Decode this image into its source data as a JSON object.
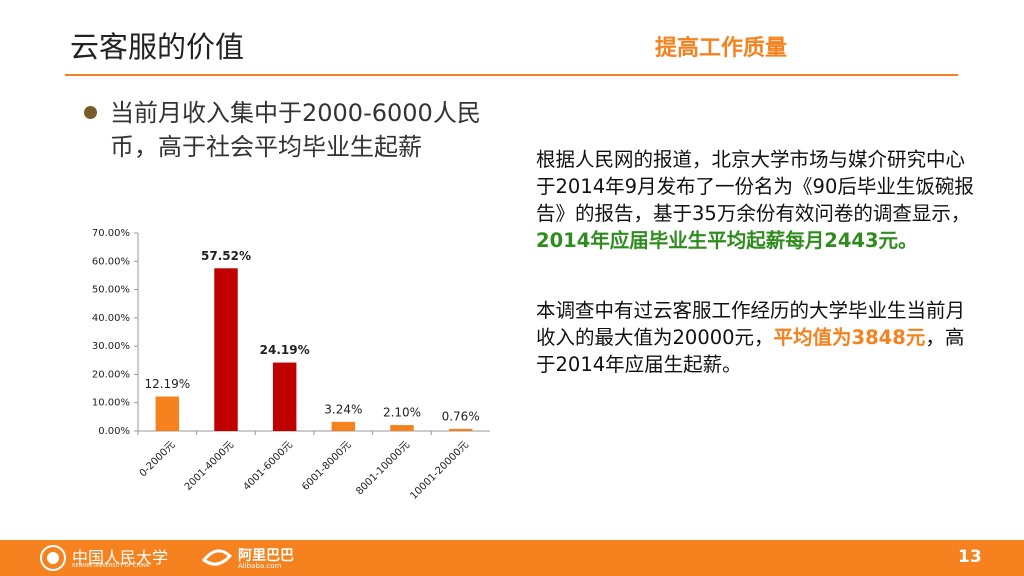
{
  "header": {
    "title": "云客服的价值",
    "subtitle": "提高工作质量"
  },
  "bullet": "当前月收入集中于2000-6000人民币，高于社会平均毕业生起薪",
  "chart_data": {
    "type": "bar",
    "categories": [
      "0-2000元",
      "2001-4000元",
      "4001-6000元",
      "6001-8000元",
      "8001-10000元",
      "10001-20000元"
    ],
    "values": [
      12.19,
      57.52,
      24.19,
      3.24,
      2.1,
      0.76
    ],
    "value_labels": [
      "12.19%",
      "57.52%",
      "24.19%",
      "3.24%",
      "2.10%",
      "0.76%"
    ],
    "colors": [
      "#f5821f",
      "#c00000",
      "#c00000",
      "#f5821f",
      "#f5821f",
      "#f5821f"
    ],
    "ylim": [
      0,
      70
    ],
    "yticks": [
      {
        "value": 0,
        "label": "0.00%"
      },
      {
        "value": 10,
        "label": "10.00%"
      },
      {
        "value": 20,
        "label": "20.00%"
      },
      {
        "value": 30,
        "label": "30.00%"
      },
      {
        "value": 40,
        "label": "40.00%"
      },
      {
        "value": 50,
        "label": "50.00%"
      },
      {
        "value": 60,
        "label": "60.00%"
      },
      {
        "value": 70,
        "label": "70.00%"
      }
    ]
  },
  "paragraphs": [
    [
      "根据人民网的报道，北京大学市场与媒介研究中心于2014年9月发布了一份名为《90后毕业生饭碗报告》的报告，基于35万余份有效问卷的调查显示，",
      "2014年应届毕业生平均起薪每月2443元。"
    ],
    [
      "本调查中有过云客服工作经历的大学毕业生当前月收入的最大值为20000元，",
      "平均值为3848元",
      "，高于2014年应届生起薪。"
    ]
  ],
  "footer": {
    "university": "中国人民大学",
    "university_en": "RENMIN UNIVERSITY OF CHINA",
    "company": "阿里巴巴",
    "company_en": "Alibaba.com",
    "page": "13"
  }
}
